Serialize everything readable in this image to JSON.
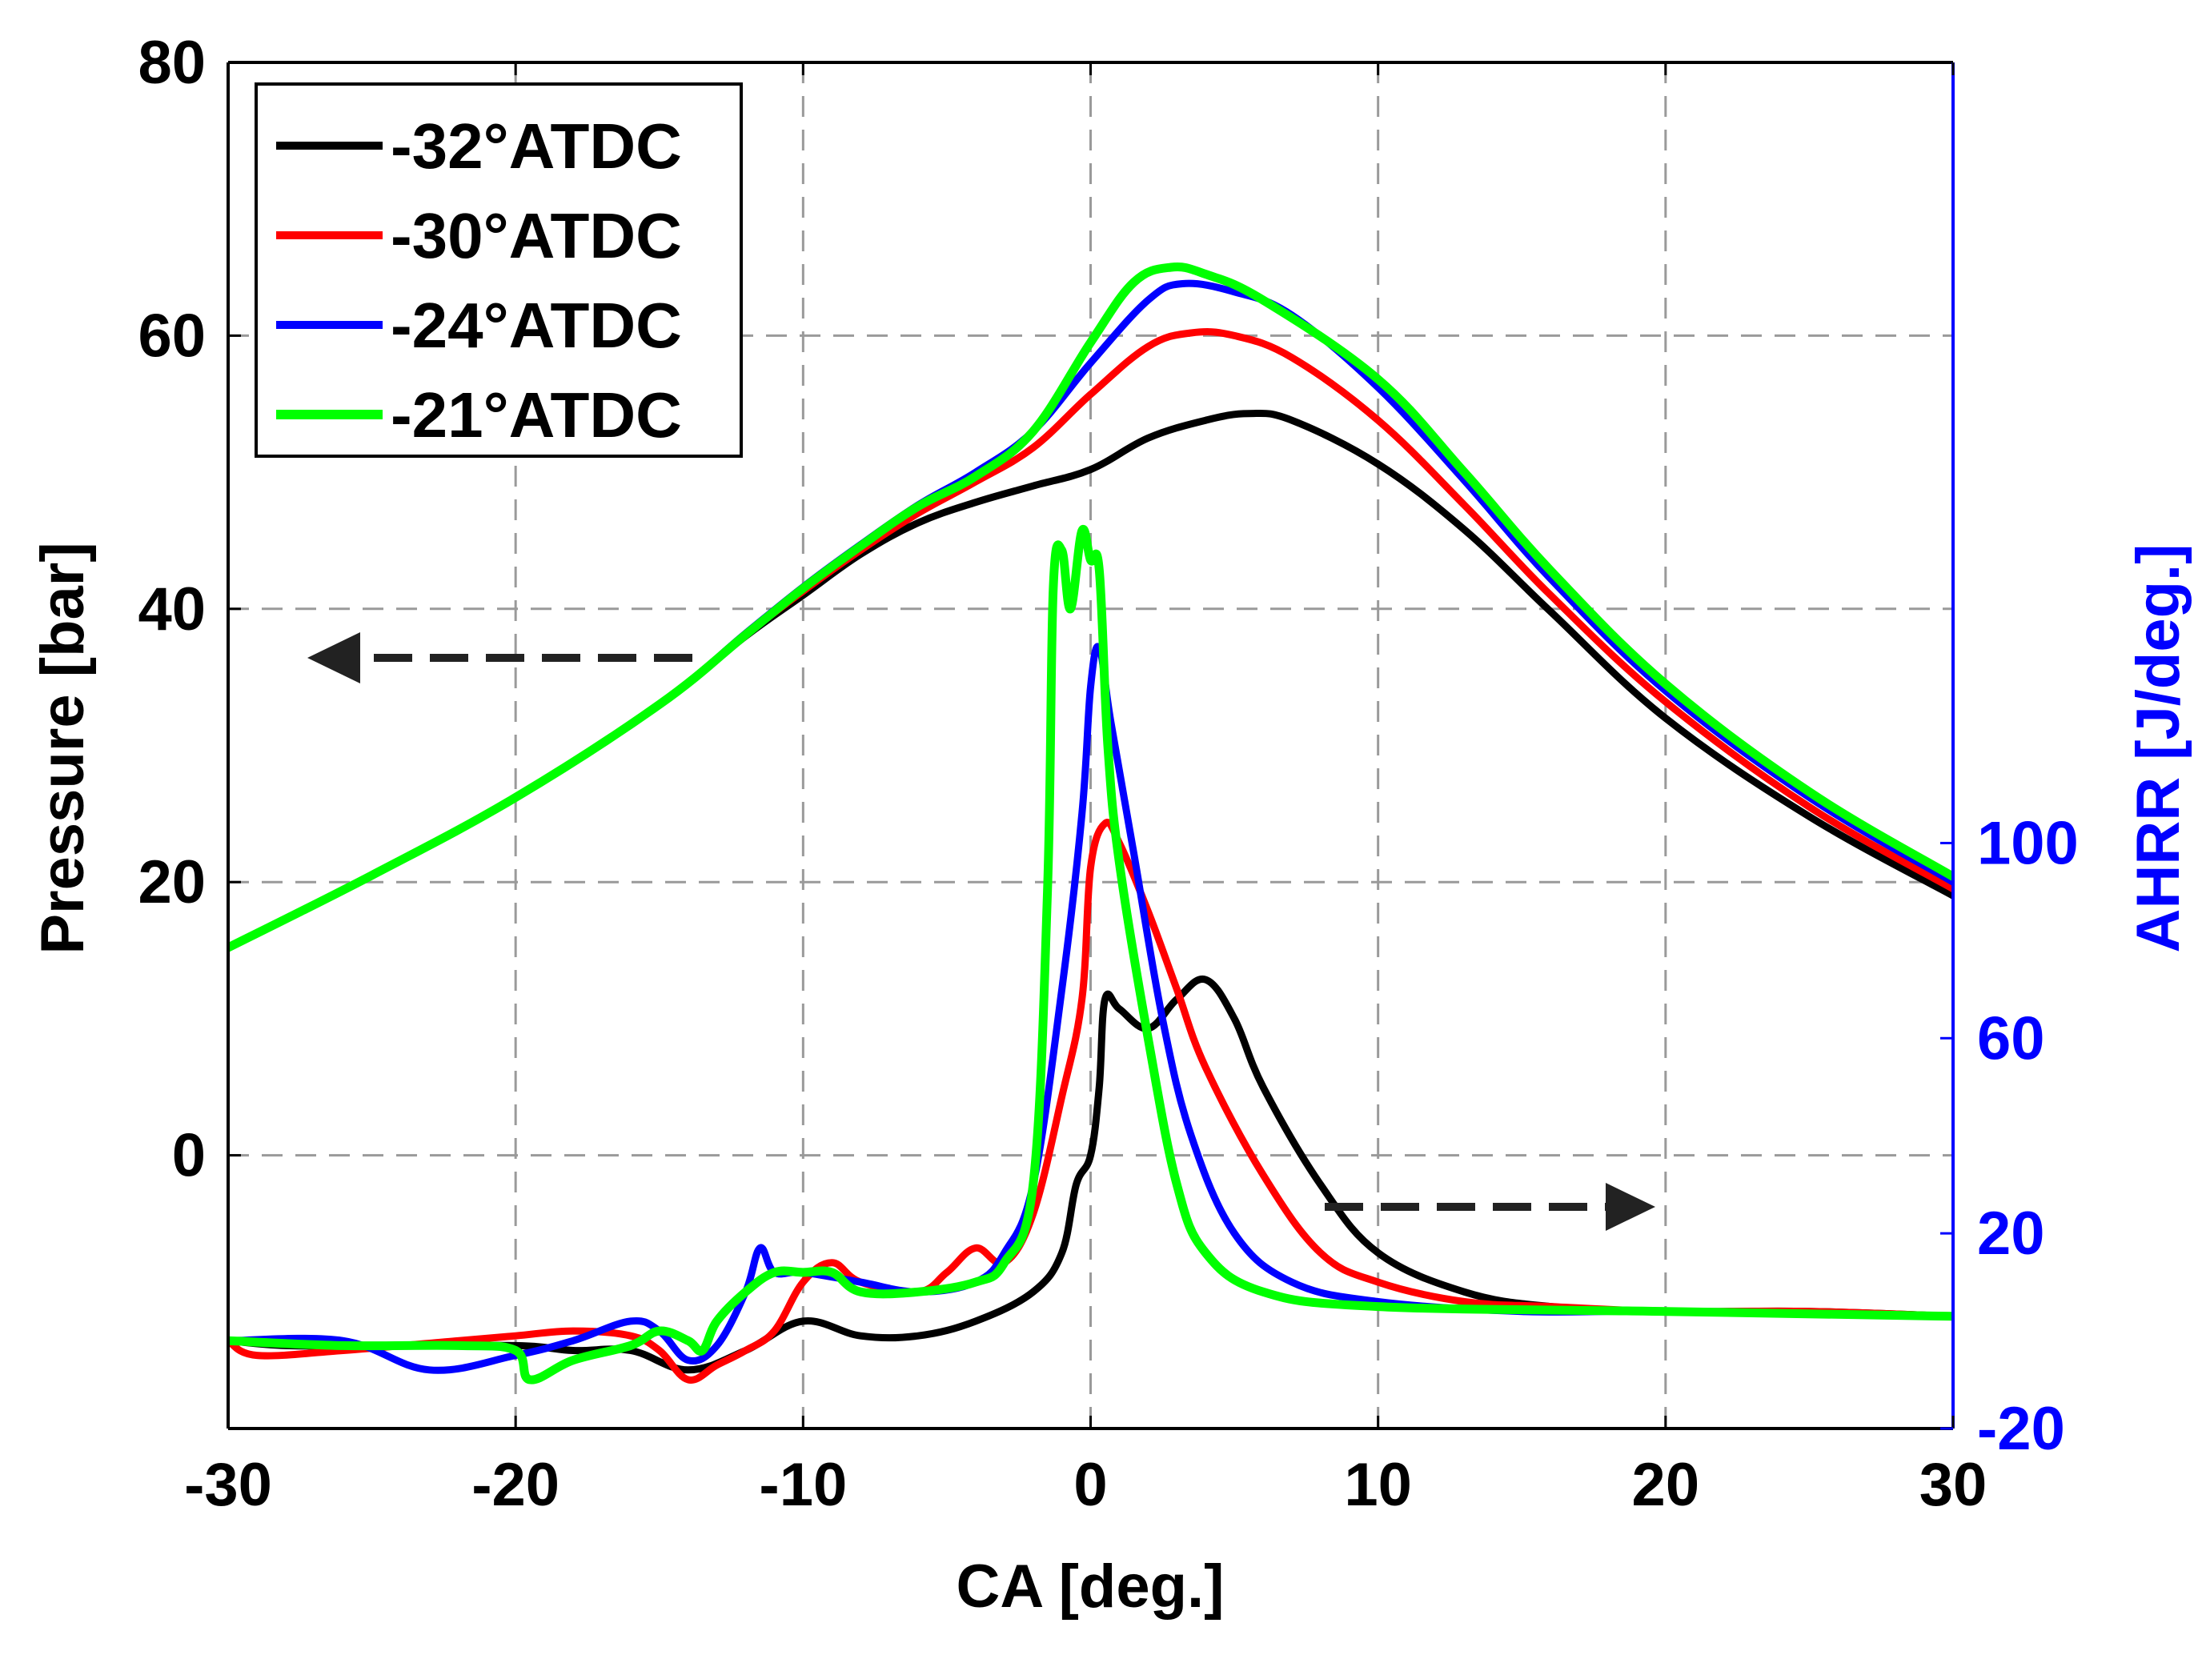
{
  "chart_data": {
    "type": "line",
    "xlabel": "CA [deg.]",
    "ylabel_left": "Pressure [bar]",
    "ylabel_right": "AHRR [J/deg.]",
    "xlim": [
      -30,
      30
    ],
    "ylim_left": [
      -20,
      80
    ],
    "ylim_right": [
      -20,
      260
    ],
    "x_ticks": [
      -30,
      -20,
      -10,
      0,
      10,
      20,
      30
    ],
    "x_tick_labels": [
      "-30",
      "-20",
      "-10",
      "0",
      "10",
      "20",
      "30"
    ],
    "left_ticks": [
      0,
      20,
      40,
      60,
      80
    ],
    "left_tick_labels": [
      "0",
      "20",
      "40",
      "60",
      "80"
    ],
    "right_ticks": [
      -20,
      20,
      60,
      100
    ],
    "right_tick_labels": [
      "-20",
      "20",
      "60",
      "100"
    ],
    "grid": true,
    "legend_position": "top-left",
    "colors": {
      "axis": "#000000",
      "right_axis": "#0000ff",
      "grid": "#9a9a9a",
      "arrow": "#222222"
    },
    "annotations": [
      {
        "type": "arrow",
        "direction": "left",
        "meaning": "pressure curves use left axis"
      },
      {
        "type": "arrow",
        "direction": "right",
        "meaning": "AHRR curves use right axis"
      }
    ],
    "series": [
      {
        "name": "-32°ATDC",
        "color": "#000000",
        "pressure": [
          [
            -30,
            15.2
          ],
          [
            -25,
            20.5
          ],
          [
            -20,
            26.2
          ],
          [
            -15,
            33
          ],
          [
            -12,
            38
          ],
          [
            -10,
            41
          ],
          [
            -8,
            44
          ],
          [
            -6,
            46.3
          ],
          [
            -4,
            47.8
          ],
          [
            -2,
            49
          ],
          [
            0,
            50.2
          ],
          [
            2,
            52.5
          ],
          [
            4,
            53.8
          ],
          [
            5.5,
            54.3
          ],
          [
            7,
            53.8
          ],
          [
            10,
            50.6
          ],
          [
            13,
            45.8
          ],
          [
            16,
            39.8
          ],
          [
            20,
            32
          ],
          [
            25,
            24.8
          ],
          [
            30,
            19
          ]
        ],
        "ahrr": [
          [
            -30,
            -2
          ],
          [
            -28,
            -3
          ],
          [
            -25,
            -3
          ],
          [
            -20,
            -3
          ],
          [
            -18,
            -4
          ],
          [
            -16,
            -4
          ],
          [
            -14,
            -8
          ],
          [
            -12,
            -4
          ],
          [
            -10,
            2
          ],
          [
            -8,
            -1
          ],
          [
            -6,
            -1
          ],
          [
            -4,
            2
          ],
          [
            -2,
            8
          ],
          [
            -1,
            16
          ],
          [
            -0.5,
            30
          ],
          [
            0,
            36
          ],
          [
            0.3,
            50
          ],
          [
            0.5,
            68
          ],
          [
            1,
            66
          ],
          [
            2,
            62
          ],
          [
            3,
            68
          ],
          [
            4,
            72
          ],
          [
            5,
            64
          ],
          [
            6,
            50
          ],
          [
            8,
            30
          ],
          [
            10,
            16
          ],
          [
            13,
            8
          ],
          [
            16,
            5
          ],
          [
            20,
            4
          ],
          [
            25,
            4
          ],
          [
            30,
            3
          ]
        ]
      },
      {
        "name": "-30°ATDC",
        "color": "#ff0000",
        "pressure": [
          [
            -30,
            15.2
          ],
          [
            -25,
            20.5
          ],
          [
            -20,
            26.2
          ],
          [
            -15,
            33
          ],
          [
            -12,
            38.1
          ],
          [
            -10,
            41.3
          ],
          [
            -8,
            44.3
          ],
          [
            -6,
            47
          ],
          [
            -4,
            49.3
          ],
          [
            -2,
            51.8
          ],
          [
            0,
            55.7
          ],
          [
            2,
            59.2
          ],
          [
            3.5,
            60.2
          ],
          [
            5,
            60
          ],
          [
            7,
            58.4
          ],
          [
            10,
            53.8
          ],
          [
            13,
            47.6
          ],
          [
            16,
            41
          ],
          [
            20,
            33.2
          ],
          [
            25,
            25.5
          ],
          [
            30,
            19.5
          ]
        ],
        "ahrr": [
          [
            -30,
            -2
          ],
          [
            -29,
            -5
          ],
          [
            -26,
            -4
          ],
          [
            -22,
            -2
          ],
          [
            -20,
            -1
          ],
          [
            -18,
            0
          ],
          [
            -16,
            -1
          ],
          [
            -15,
            -4
          ],
          [
            -14,
            -10
          ],
          [
            -13,
            -7
          ],
          [
            -12,
            -4
          ],
          [
            -11,
            0
          ],
          [
            -10,
            10
          ],
          [
            -9,
            14
          ],
          [
            -8,
            10
          ],
          [
            -6,
            8
          ],
          [
            -5,
            12
          ],
          [
            -4,
            17
          ],
          [
            -3,
            14
          ],
          [
            -2,
            24
          ],
          [
            -1,
            48
          ],
          [
            -0.3,
            68
          ],
          [
            0,
            95
          ],
          [
            0.5,
            104
          ],
          [
            1,
            100
          ],
          [
            2,
            86
          ],
          [
            3,
            70
          ],
          [
            4,
            54
          ],
          [
            6,
            32
          ],
          [
            8,
            16
          ],
          [
            10,
            10
          ],
          [
            13,
            6
          ],
          [
            16,
            5
          ],
          [
            20,
            4
          ],
          [
            25,
            4
          ],
          [
            30,
            3
          ]
        ]
      },
      {
        "name": "-24°ATDC",
        "color": "#0000ff",
        "pressure": [
          [
            -30,
            15.2
          ],
          [
            -25,
            20.5
          ],
          [
            -20,
            26.2
          ],
          [
            -15,
            33
          ],
          [
            -12,
            38.2
          ],
          [
            -10,
            41.6
          ],
          [
            -8,
            44.7
          ],
          [
            -6,
            47.6
          ],
          [
            -4,
            50
          ],
          [
            -2,
            53
          ],
          [
            0,
            58
          ],
          [
            2,
            62.6
          ],
          [
            3.2,
            63.8
          ],
          [
            5,
            63.2
          ],
          [
            7,
            61.5
          ],
          [
            10,
            56.2
          ],
          [
            13,
            49.4
          ],
          [
            16,
            42.2
          ],
          [
            20,
            34
          ],
          [
            25,
            26.2
          ],
          [
            30,
            20
          ]
        ],
        "ahrr": [
          [
            -30,
            -2
          ],
          [
            -26,
            -2
          ],
          [
            -23,
            -8
          ],
          [
            -20,
            -5
          ],
          [
            -18,
            -2
          ],
          [
            -16,
            2
          ],
          [
            -15,
            0
          ],
          [
            -14,
            -6
          ],
          [
            -13,
            -3
          ],
          [
            -12,
            8
          ],
          [
            -11.5,
            17
          ],
          [
            -11,
            12
          ],
          [
            -10,
            12
          ],
          [
            -8,
            10
          ],
          [
            -6,
            8
          ],
          [
            -4,
            10
          ],
          [
            -3,
            16
          ],
          [
            -2,
            30
          ],
          [
            -1,
            70
          ],
          [
            -0.3,
            106
          ],
          [
            0,
            132
          ],
          [
            0.3,
            140
          ],
          [
            0.7,
            125
          ],
          [
            1.5,
            98
          ],
          [
            2.5,
            64
          ],
          [
            3.5,
            40
          ],
          [
            5,
            20
          ],
          [
            7,
            10
          ],
          [
            10,
            6
          ],
          [
            15,
            4
          ],
          [
            20,
            4
          ],
          [
            30,
            3
          ]
        ]
      },
      {
        "name": "-21°ATDC",
        "color": "#00ff00",
        "pressure": [
          [
            -30,
            15.2
          ],
          [
            -25,
            20.5
          ],
          [
            -20,
            26.2
          ],
          [
            -15,
            33
          ],
          [
            -12,
            38.1
          ],
          [
            -10,
            41.5
          ],
          [
            -8,
            44.6
          ],
          [
            -6,
            47.5
          ],
          [
            -4,
            49.7
          ],
          [
            -2,
            53
          ],
          [
            0,
            59.5
          ],
          [
            1.5,
            63.9
          ],
          [
            2.8,
            65
          ],
          [
            4,
            64.5
          ],
          [
            6,
            62.6
          ],
          [
            10,
            56.8
          ],
          [
            13,
            50
          ],
          [
            16,
            42.8
          ],
          [
            20,
            34.5
          ],
          [
            25,
            26.6
          ],
          [
            30,
            20.4
          ]
        ],
        "ahrr": [
          [
            -30,
            -2
          ],
          [
            -26,
            -3
          ],
          [
            -22,
            -3
          ],
          [
            -20,
            -4
          ],
          [
            -19.5,
            -10
          ],
          [
            -18,
            -6
          ],
          [
            -16,
            -3
          ],
          [
            -15,
            0
          ],
          [
            -14,
            -2
          ],
          [
            -13.5,
            -4
          ],
          [
            -13,
            2
          ],
          [
            -12,
            8
          ],
          [
            -11,
            12
          ],
          [
            -10,
            12
          ],
          [
            -9,
            12
          ],
          [
            -8,
            8
          ],
          [
            -6,
            8
          ],
          [
            -4,
            10
          ],
          [
            -3,
            14
          ],
          [
            -2,
            30
          ],
          [
            -1.5,
            90
          ],
          [
            -1.3,
            152
          ],
          [
            -1,
            160
          ],
          [
            -0.7,
            148
          ],
          [
            -0.3,
            164
          ],
          [
            0,
            158
          ],
          [
            0.3,
            156
          ],
          [
            0.6,
            120
          ],
          [
            1,
            96
          ],
          [
            2,
            60
          ],
          [
            3,
            30
          ],
          [
            4,
            16
          ],
          [
            6,
            8
          ],
          [
            10,
            5
          ],
          [
            20,
            4
          ],
          [
            30,
            3
          ]
        ]
      }
    ]
  }
}
